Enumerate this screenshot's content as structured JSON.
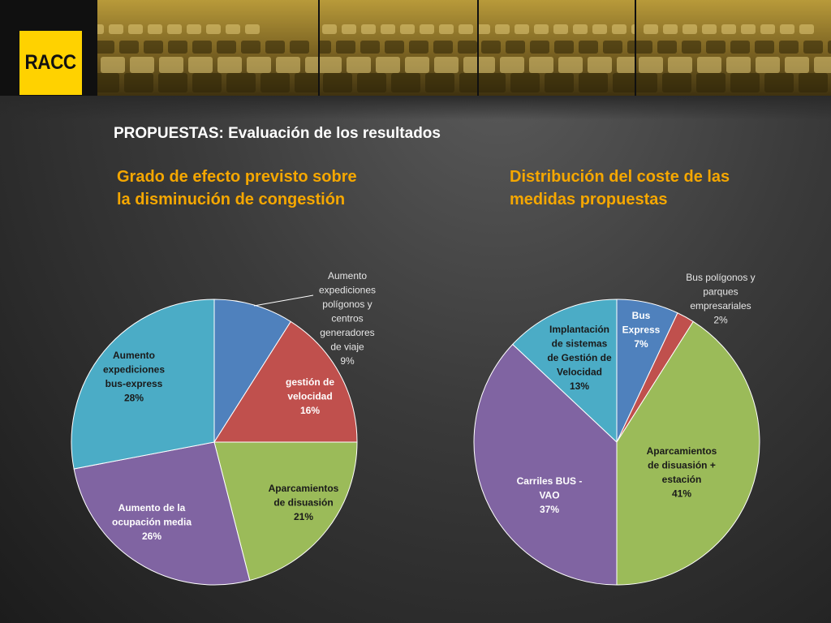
{
  "logo": {
    "text": "RACC"
  },
  "header": {
    "title": "PROPUESTAS: Evaluación de los resultados"
  },
  "colors": {
    "blue": "#4f81bd",
    "red": "#c0504d",
    "green": "#9bbb59",
    "purple": "#8064a2",
    "teal": "#4bacc6",
    "accent": "#f5a700"
  },
  "chart_data": [
    {
      "type": "pie",
      "title_lines": [
        "Grado de efecto previsto sobre",
        "la disminución de congestión"
      ],
      "slices": [
        {
          "label_lines": [
            "Aumento",
            "expediciones",
            "polígonos y",
            "centros",
            "generadores",
            "de viaje"
          ],
          "value": 9,
          "percent": "9%",
          "color": "#4f81bd"
        },
        {
          "label_lines": [
            "gestión de",
            "velocidad"
          ],
          "value": 16,
          "percent": "16%",
          "color": "#c0504d"
        },
        {
          "label_lines": [
            "Aparcamientos",
            "de disuasión"
          ],
          "value": 21,
          "percent": "21%",
          "color": "#9bbb59"
        },
        {
          "label_lines": [
            "Aumento de la",
            "ocupación media"
          ],
          "value": 26,
          "percent": "26%",
          "color": "#8064a2"
        },
        {
          "label_lines": [
            "Aumento",
            "expediciones",
            "bus-express"
          ],
          "value": 28,
          "percent": "28%",
          "color": "#4bacc6"
        }
      ]
    },
    {
      "type": "pie",
      "title_lines": [
        "Distribución del coste de las",
        "medidas propuestas"
      ],
      "slices": [
        {
          "label_lines": [
            "Bus",
            "Express"
          ],
          "value": 7,
          "percent": "7%",
          "color": "#4f81bd"
        },
        {
          "label_lines": [
            "Bus polígonos y",
            "parques",
            "empresariales"
          ],
          "value": 2,
          "percent": "2%",
          "color": "#c0504d"
        },
        {
          "label_lines": [
            "Aparcamientos",
            "de disuasión +",
            "estación"
          ],
          "value": 41,
          "percent": "41%",
          "color": "#9bbb59"
        },
        {
          "label_lines": [
            "Carriles BUS -",
            "VAO"
          ],
          "value": 37,
          "percent": "37%",
          "color": "#8064a2"
        },
        {
          "label_lines": [
            "Implantación",
            "de sistemas",
            "de Gestión de",
            "Velocidad"
          ],
          "value": 13,
          "percent": "13%",
          "color": "#4bacc6"
        }
      ]
    }
  ]
}
